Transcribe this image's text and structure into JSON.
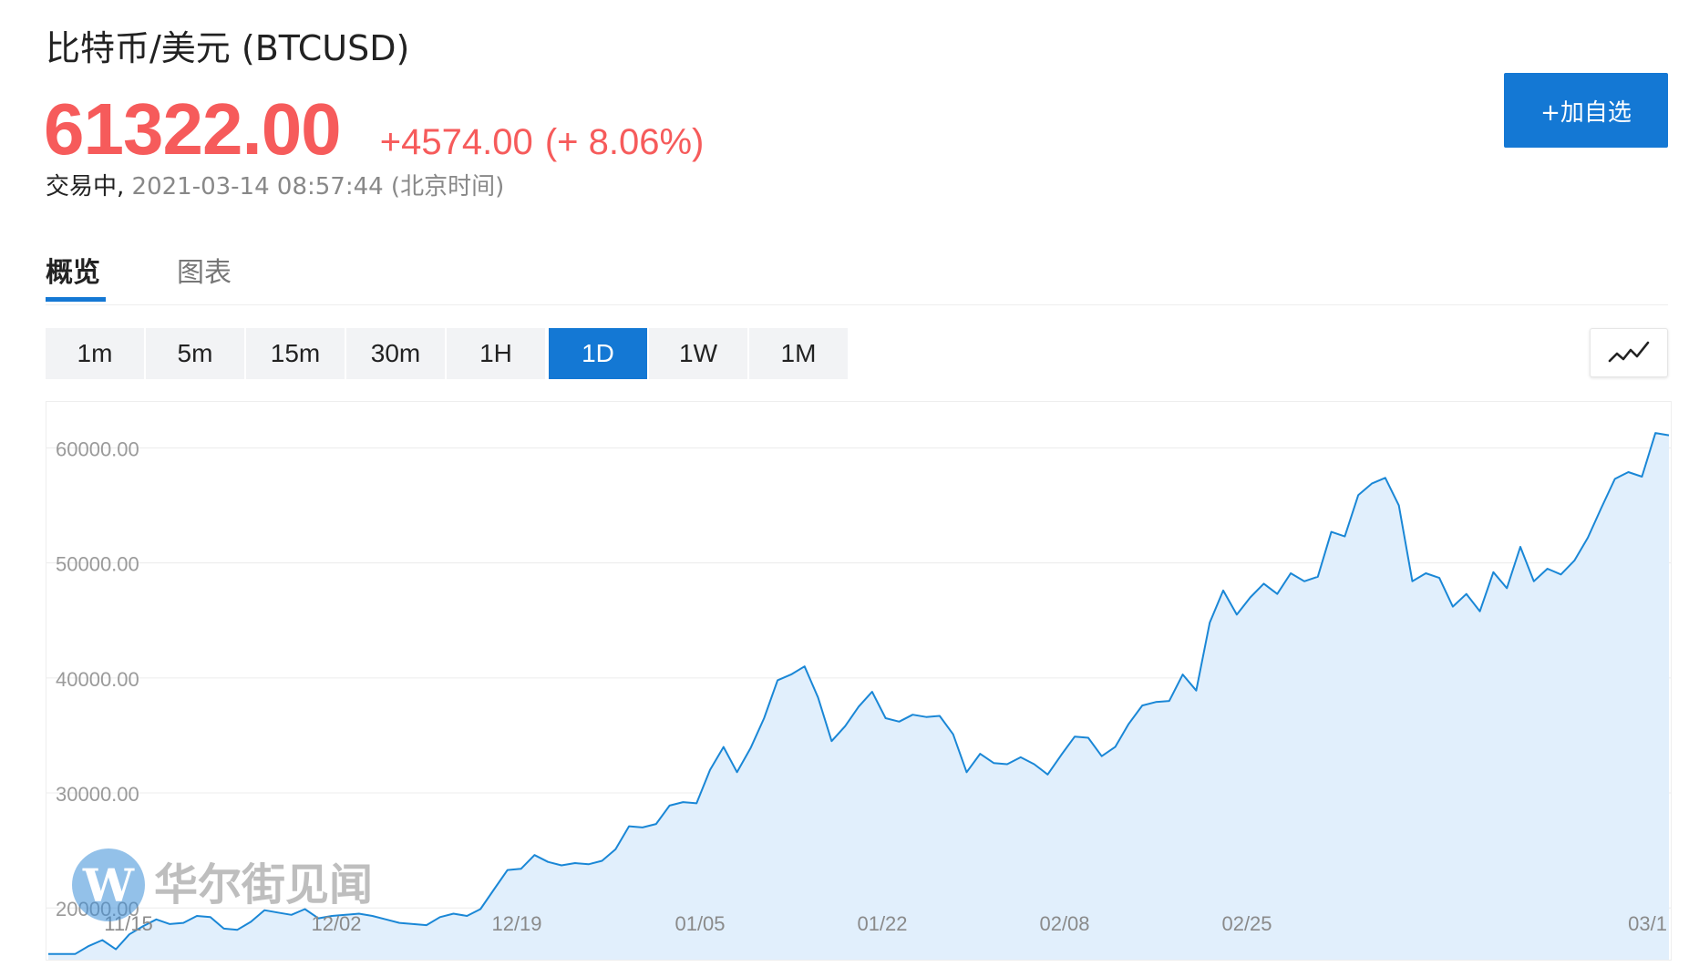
{
  "header": {
    "title": "比特币/美元 (BTCUSD)",
    "price": "61322.00",
    "change": "+4574.00",
    "change_pct": "(+ 8.06%)",
    "status": "交易中,",
    "timestamp": "2021-03-14 08:57:44 (北京时间)",
    "add_watchlist_label": "+加自选"
  },
  "tabs": [
    {
      "label": "概览",
      "active": true
    },
    {
      "label": "图表",
      "active": false
    }
  ],
  "intervals": [
    {
      "label": "1m",
      "active": false
    },
    {
      "label": "5m",
      "active": false
    },
    {
      "label": "15m",
      "active": false
    },
    {
      "label": "30m",
      "active": false
    },
    {
      "label": "1H",
      "active": false
    },
    {
      "label": "1D",
      "active": true
    },
    {
      "label": "1W",
      "active": false
    },
    {
      "label": "1M",
      "active": false
    }
  ],
  "chart_type_icon": "line-chart-icon",
  "watermark": "华尔街见闻",
  "colors": {
    "up": "#f65b5b",
    "accent": "#1478d4",
    "line": "#1a87d6",
    "area": "#e1effc"
  },
  "chart_data": {
    "type": "area",
    "title": "",
    "xlabel": "",
    "ylabel": "",
    "ylim": [
      15500,
      64000
    ],
    "y_ticks": [
      "60000.00",
      "50000.00",
      "40000.00",
      "30000.00",
      "20000.00"
    ],
    "x_tick_labels": [
      "11/15",
      "12/02",
      "12/19",
      "01/05",
      "01/22",
      "02/08",
      "02/25",
      "03/1"
    ],
    "grid": true,
    "legend": "none",
    "series": [
      {
        "values": [
          16000,
          16000,
          16000,
          16700,
          17200,
          16400,
          17700,
          18400,
          19000,
          18600,
          18700,
          19300,
          19200,
          18200,
          18100,
          18800,
          19800,
          19600,
          19400,
          19900,
          19100,
          19300,
          19400,
          19500,
          19300,
          19000,
          18700,
          18600,
          18500,
          19200,
          19500,
          19300,
          19900,
          21600,
          23300,
          23400,
          24600,
          24000,
          23700,
          23900,
          23800,
          24100,
          25100,
          27100,
          27000,
          27300,
          28900,
          29200,
          29100,
          32000,
          34000,
          31800,
          33900,
          36500,
          39800,
          40300,
          41000,
          38300,
          34500,
          35800,
          37500,
          38800,
          36500,
          36200,
          36800,
          36600,
          36700,
          35100,
          31800,
          33400,
          32600,
          32500,
          33100,
          32500,
          31600,
          33300,
          34900,
          34800,
          33200,
          34000,
          36000,
          37600,
          37900,
          38000,
          40300,
          38900,
          44800,
          47600,
          45500,
          47000,
          48200,
          47300,
          49100,
          48400,
          48800,
          52700,
          52300,
          55900,
          56900,
          57400,
          55000,
          48400,
          49100,
          48700,
          46200,
          47300,
          45800,
          49200,
          47800,
          51400,
          48400,
          49500,
          49000,
          50200,
          52200,
          54800,
          57300,
          57900,
          57500,
          61300,
          61100
        ]
      }
    ]
  }
}
